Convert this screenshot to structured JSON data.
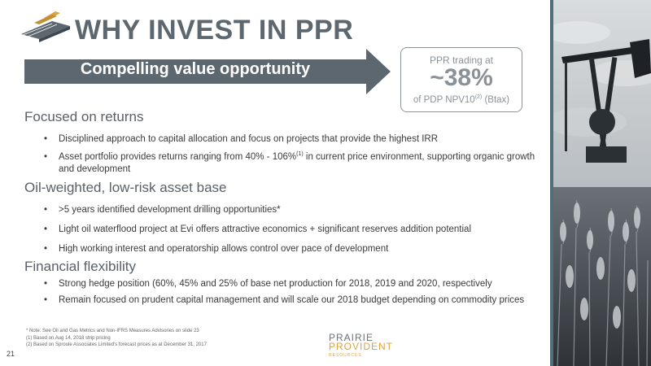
{
  "header": {
    "title": "WHY INVEST IN PPR"
  },
  "banner": {
    "label": "Compelling value opportunity"
  },
  "callout": {
    "top": "PPR trading at",
    "value": "~38%",
    "bottom_pre": "of PDP NPV10",
    "bottom_sup": "(2)",
    "bottom_post": " (Btax)"
  },
  "sections": [
    {
      "heading": "Focused on returns",
      "bullets": [
        "Disciplined approach to capital allocation and focus on projects that provide the highest IRR",
        "Asset portfolio provides returns ranging from 40% - 106%",
        "(1)",
        " in current price environment, supporting organic growth and development"
      ]
    },
    {
      "heading": "Oil-weighted, low-risk asset base",
      "bullets": [
        ">5 years identified development drilling opportunities*",
        "Light oil waterflood project at Evi offers attractive economics + significant reserves addition potential",
        "High working interest and operatorship allows control over pace of development"
      ]
    },
    {
      "heading": "Financial flexibility",
      "bullets": [
        "Strong hedge position (60%, 45% and 25% of base net production for 2018, 2019 and 2020, respectively",
        "Remain focused on prudent capital management and will scale our 2018 budget depending on commodity prices"
      ]
    }
  ],
  "footnotes": {
    "note": "* Note: See Oil and Gas Metrics and Non-IFRS Measures Advisories on slide 23",
    "fn1": "(1)   Based on Aug 14, 2018 strip pricing",
    "fn2": "(2)   Based on Sproule Associates Limited's forecast prices as at December 31, 2017"
  },
  "page_number": "21",
  "brand": {
    "line1": "PRAIRIE",
    "line2": "PROVIDENT",
    "line3": "RESOURCES"
  },
  "bullet_char": "•",
  "colors": {
    "banner": "#5c6770",
    "accent_gold": "#d9a441",
    "photo_strip": "#4f6e7a"
  }
}
